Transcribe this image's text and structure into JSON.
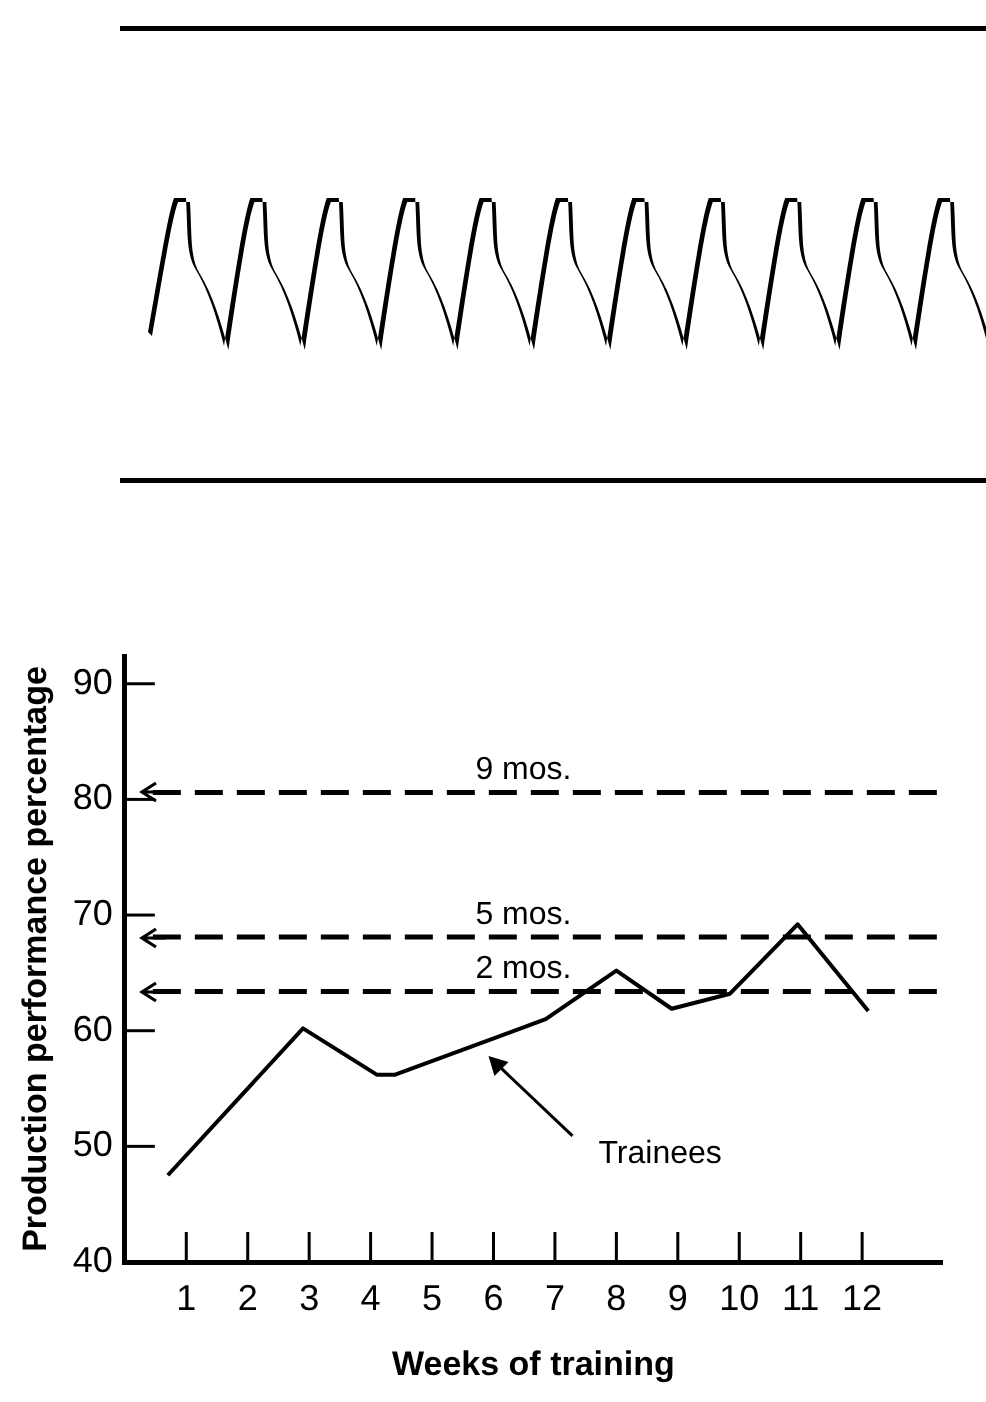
{
  "chart_data": {
    "type": "line",
    "xlabel": "Weeks of training",
    "ylabel": "Production performance percentage",
    "xlim": [
      0,
      13.3
    ],
    "xticks": [
      1,
      2,
      3,
      4,
      5,
      6,
      7,
      8,
      9,
      10,
      11,
      12
    ],
    "ylim": [
      40,
      92.4
    ],
    "yticks": [
      40,
      50,
      60,
      70,
      80,
      90
    ],
    "series": [
      {
        "color": "#000000",
        "x": [
          0.7,
          2.9,
          4.1,
          4.4,
          6.85,
          8,
          8.9,
          9.85,
          10.95,
          12.1
        ],
        "values": [
          47.5,
          60.2,
          56.2,
          56.2,
          61,
          65.2,
          61.9,
          63.2,
          69.2,
          61.7
        ]
      }
    ],
    "ref_lines": [
      {
        "axis": "y",
        "value": 80.6,
        "label": "9 mos.",
        "color": "#000000",
        "line_style": "dashed"
      },
      {
        "axis": "y",
        "value": 68.1,
        "label": "5 mos.",
        "color": "#000000",
        "line_style": "dashed"
      },
      {
        "axis": "y",
        "value": 63.4,
        "label": "2 mos.",
        "color": "#000000",
        "line_style": "dashed"
      }
    ],
    "annotations": [
      "Trainees"
    ],
    "grid": false,
    "legend": false,
    "marker": "none",
    "line_style": "solid"
  }
}
